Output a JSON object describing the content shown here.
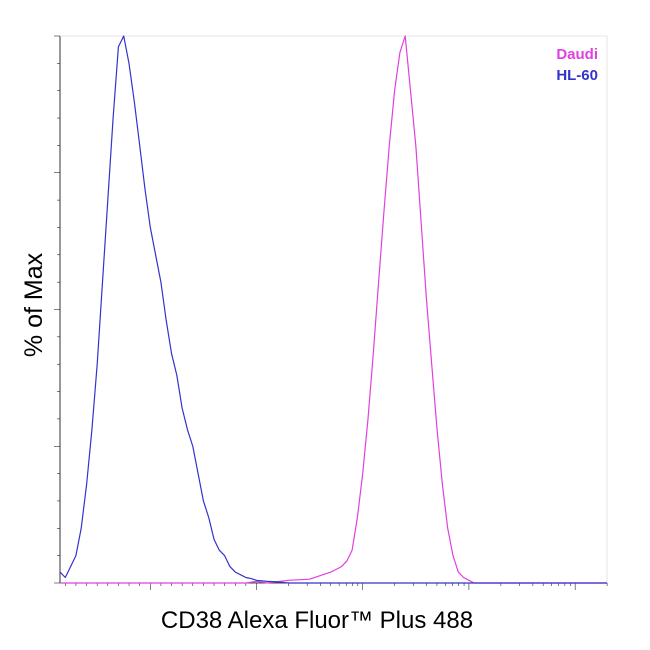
{
  "chart_data": {
    "type": "line",
    "title": "",
    "xlabel": "CD38 Alexa Fluor™ Plus 488",
    "ylabel": "% of Max",
    "xscale": "log",
    "xlim": [
      -0.85,
      4.3
    ],
    "ylim": [
      0,
      100
    ],
    "grid": false,
    "legend_position": "top-right",
    "series": [
      {
        "name": "Daudi",
        "color": "#e040e0",
        "x": [
          -0.85,
          0.9,
          1.0,
          1.1,
          1.3,
          1.5,
          1.7,
          1.8,
          1.85,
          1.9,
          1.95,
          2.0,
          2.05,
          2.1,
          2.15,
          2.2,
          2.25,
          2.3,
          2.35,
          2.4,
          2.45,
          2.5,
          2.55,
          2.6,
          2.65,
          2.7,
          2.75,
          2.8,
          2.85,
          2.9,
          2.95,
          3.0,
          3.05,
          3.1,
          3.15,
          3.2,
          3.25,
          3.3,
          3.35,
          3.4,
          3.5,
          3.7,
          4.3
        ],
        "values": [
          0,
          0,
          0.3,
          0,
          0.5,
          0.7,
          2,
          3,
          4,
          6,
          12,
          20,
          30,
          42,
          55,
          68,
          80,
          90,
          97,
          100,
          90,
          80,
          66,
          52,
          40,
          28,
          18,
          10,
          5,
          2,
          1,
          0.5,
          0,
          0,
          0,
          0,
          0,
          0,
          0,
          0,
          0,
          0,
          0
        ]
      },
      {
        "name": "HL-60",
        "color": "#3333cc",
        "x": [
          -0.85,
          -0.8,
          -0.75,
          -0.7,
          -0.65,
          -0.6,
          -0.55,
          -0.5,
          -0.45,
          -0.4,
          -0.35,
          -0.3,
          -0.25,
          -0.2,
          -0.15,
          -0.1,
          -0.05,
          0.0,
          0.05,
          0.1,
          0.15,
          0.2,
          0.25,
          0.3,
          0.35,
          0.4,
          0.45,
          0.5,
          0.55,
          0.6,
          0.65,
          0.7,
          0.75,
          0.8,
          0.85,
          0.9,
          0.95,
          1.0,
          1.1,
          1.2,
          1.3,
          1.5,
          2.0,
          2.5,
          4.3
        ],
        "values": [
          2,
          1,
          3,
          5,
          10,
          18,
          28,
          40,
          55,
          70,
          85,
          98,
          100,
          95,
          88,
          80,
          72,
          65,
          60,
          55,
          48,
          42,
          38,
          32,
          28,
          25,
          20,
          15,
          12,
          8,
          6,
          5,
          3,
          2,
          1.5,
          1,
          0.8,
          0.5,
          0.3,
          0.2,
          0,
          0,
          0,
          0,
          0
        ]
      }
    ]
  }
}
